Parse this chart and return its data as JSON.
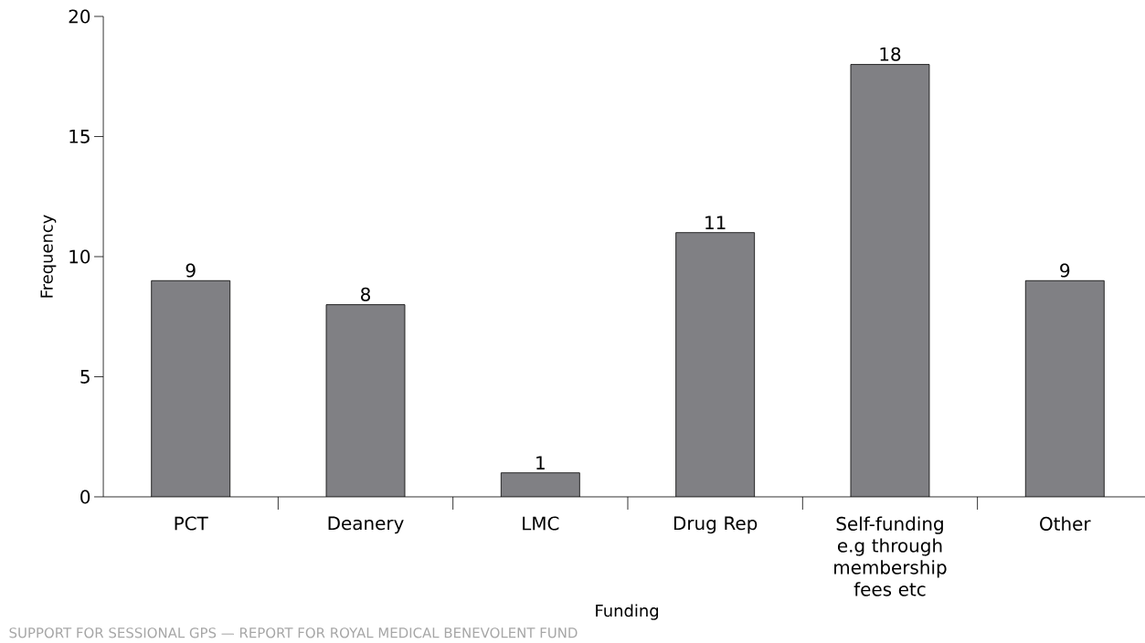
{
  "chart_data": {
    "type": "bar",
    "xlabel": "Funding",
    "ylabel": "Frequency",
    "categories": [
      "PCT",
      "Deanery",
      "LMC",
      "Drug Rep",
      "Self-funding e.g through membership fees etc",
      "Other"
    ],
    "values": [
      9,
      8,
      1,
      11,
      18,
      9
    ],
    "color": "#808084",
    "ylim": [
      0,
      20
    ],
    "yticks": [
      0,
      5,
      10,
      15,
      20
    ],
    "data_labels": true,
    "annotations": [
      "SUPPORT FOR SESSIONAL GPS — REPORT FOR ROYAL MEDICAL BENEVOLENT FUND"
    ]
  }
}
